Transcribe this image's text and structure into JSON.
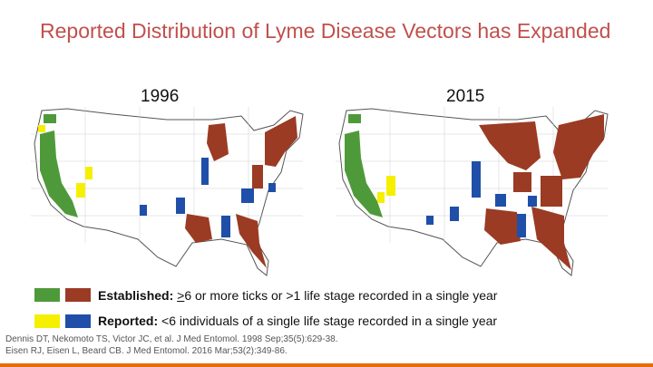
{
  "slide": {
    "title": "Reported Distribution of Lyme Disease Vectors has Expanded"
  },
  "maps": [
    {
      "year": "1996"
    },
    {
      "year": "2015"
    }
  ],
  "legend": {
    "established": {
      "label": "Established:",
      "prefix": ">",
      "text": "6 or more ticks or >1 life stage recorded in a single year",
      "colors": {
        "west": "#4e9a3a",
        "east": "#9b3b24"
      }
    },
    "reported": {
      "label": "Reported:",
      "text": "<6 individuals of a single life stage recorded in a single year",
      "colors": {
        "west": "#f4f000",
        "east": "#1f4fa8"
      }
    }
  },
  "citations": [
    "Dennis DT, Nekomoto TS, Victor JC, et al. J Med Entomol. 1998 Sep;35(5):629-38.",
    "Eisen RJ, Eisen L, Beard CB. J Med Entomol. 2016 Mar;53(2):349-86."
  ]
}
